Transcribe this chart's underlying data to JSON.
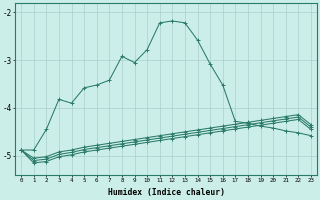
{
  "xlabel": "Humidex (Indice chaleur)",
  "bg_color": "#cceee8",
  "line_color": "#2a7a6a",
  "grid_color": "#aacfcc",
  "xlim": [
    -0.5,
    23.5
  ],
  "ylim": [
    -5.4,
    -1.8
  ],
  "xticks": [
    0,
    1,
    2,
    3,
    4,
    5,
    6,
    7,
    8,
    9,
    10,
    11,
    12,
    13,
    14,
    15,
    16,
    17,
    18,
    19,
    20,
    21,
    22,
    23
  ],
  "yticks": [
    -5,
    -4,
    -3,
    -2
  ],
  "line1_x": [
    0,
    1,
    2,
    3,
    4,
    5,
    6,
    7,
    8,
    9,
    10,
    11,
    12,
    13,
    14,
    15,
    16,
    17,
    18,
    19,
    20,
    21,
    22,
    23
  ],
  "line1_y": [
    -4.88,
    -4.88,
    -4.45,
    -3.82,
    -3.9,
    -3.58,
    -3.52,
    -3.42,
    -2.92,
    -3.05,
    -2.78,
    -2.22,
    -2.18,
    -2.22,
    -2.58,
    -3.08,
    -3.52,
    -4.28,
    -4.32,
    -4.38,
    -4.42,
    -4.48,
    -4.52,
    -4.58
  ],
  "line2_x": [
    0,
    1,
    2,
    3,
    4,
    5,
    6,
    7,
    8,
    9,
    10,
    11,
    12,
    13,
    14,
    15,
    16,
    17,
    18,
    19,
    20,
    21,
    22,
    23
  ],
  "line2_y": [
    -4.88,
    -5.05,
    -5.02,
    -4.92,
    -4.88,
    -4.82,
    -4.78,
    -4.74,
    -4.7,
    -4.66,
    -4.62,
    -4.58,
    -4.54,
    -4.5,
    -4.46,
    -4.42,
    -4.38,
    -4.34,
    -4.3,
    -4.26,
    -4.22,
    -4.18,
    -4.14,
    -4.35
  ],
  "line3_x": [
    0,
    1,
    2,
    3,
    4,
    5,
    6,
    7,
    8,
    9,
    10,
    11,
    12,
    13,
    14,
    15,
    16,
    17,
    18,
    19,
    20,
    21,
    22,
    23
  ],
  "line3_y": [
    -4.88,
    -5.1,
    -5.07,
    -4.97,
    -4.93,
    -4.87,
    -4.83,
    -4.79,
    -4.75,
    -4.71,
    -4.67,
    -4.63,
    -4.59,
    -4.55,
    -4.51,
    -4.47,
    -4.43,
    -4.39,
    -4.35,
    -4.31,
    -4.27,
    -4.23,
    -4.19,
    -4.4
  ],
  "line4_x": [
    0,
    1,
    2,
    3,
    4,
    5,
    6,
    7,
    8,
    9,
    10,
    11,
    12,
    13,
    14,
    15,
    16,
    17,
    18,
    19,
    20,
    21,
    22,
    23
  ],
  "line4_y": [
    -4.88,
    -5.15,
    -5.12,
    -5.02,
    -4.98,
    -4.92,
    -4.88,
    -4.84,
    -4.8,
    -4.76,
    -4.72,
    -4.68,
    -4.64,
    -4.6,
    -4.56,
    -4.52,
    -4.48,
    -4.44,
    -4.4,
    -4.36,
    -4.32,
    -4.28,
    -4.24,
    -4.45
  ]
}
